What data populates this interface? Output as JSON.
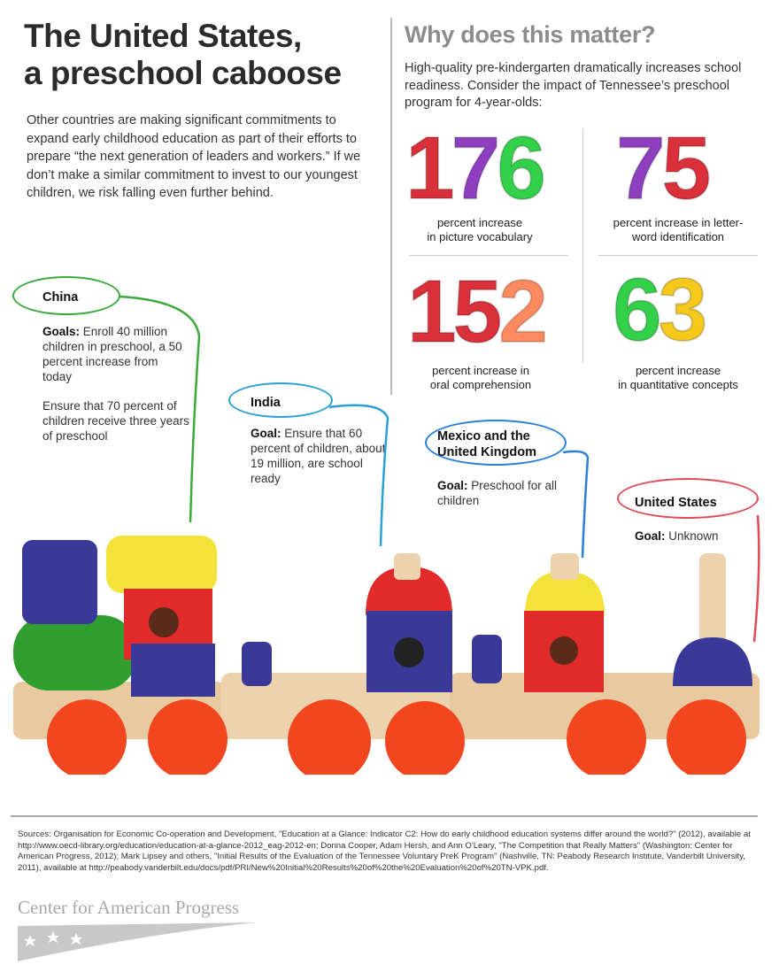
{
  "left": {
    "title_line1": "The United States,",
    "title_line2": "a preschool caboose",
    "intro": "Other countries are making significant commitments to expand early childhood education as part of their efforts to prepare “the next generation of leaders and workers.” If we don’t make a similar commitment to invest to our youngest children, we risk falling even further behind."
  },
  "right": {
    "heading": "Why does this matter?",
    "intro": "High-quality pre-kindergarten dramatically increases school readiness. Consider the impact of Tennessee’s preschool program for 4-year-olds:",
    "stats": [
      {
        "value": "176",
        "label_line1": "percent increase",
        "label_line2": "in picture vocabulary",
        "digit_colors": [
          "#d9303a",
          "#8e3fc0",
          "#33d04a"
        ]
      },
      {
        "value": "75",
        "label_line1": "percent increase in letter-",
        "label_line2": "word identification",
        "digit_colors": [
          "#8e3fc0",
          "#d9303a"
        ]
      },
      {
        "value": "152",
        "label_line1": "percent increase in",
        "label_line2": "oral comprehension",
        "digit_colors": [
          "#d9303a",
          "#d9303a",
          "#ff8a60"
        ]
      },
      {
        "value": "63",
        "label_line1": "percent increase",
        "label_line2": "in quantitative concepts",
        "digit_colors": [
          "#33d04a",
          "#f5c81c"
        ]
      }
    ]
  },
  "countries": {
    "china": {
      "name": "China",
      "goal_label": "Goals:",
      "goal1": " Enroll 40 million children in preschool, a 50 percent increase from today",
      "goal2": "Ensure that 70 percent of children receive three years of preschool",
      "color": "#3aaa3a"
    },
    "india": {
      "name": "India",
      "goal_label": "Goal:",
      "goal": " Ensure that 60 percent of children, about 19 million, are school ready",
      "color": "#2a9fd8"
    },
    "mexico_uk": {
      "name_line1": "Mexico and the",
      "name_line2": "United Kingdom",
      "goal_label": "Goal:",
      "goal": " Preschool for all children",
      "color": "#2a7fd8"
    },
    "us": {
      "name": "United States",
      "goal_label": "Goal:",
      "goal": " Unknown",
      "color": "#e04a55"
    }
  },
  "footer": {
    "sources": "Sources: Organisation for Economic Co-operation and Development, \"Education at a Glance: Indicator C2: How do early childhood education systems differ around the world?\" (2012), available at http://www.oecd-library.org/education/education-at-a-glance-2012_eag-2012-en; Donna Cooper, Adam Hersh, and Ann O'Leary, \"The Competition that Really Matters\" (Washington: Center for American Progress, 2012); Mark Lipsey and others, \"Initial Results of the Evaluation of the Tennessee Voluntary PreK Program\" (Nashville, TN: Peabody Research Institute, Vanderbilt University, 2011), available at http://peabody.vanderbilt.edu/docs/pdf/PRI/New%20Initial%20Results%20of%20the%20Evaluation%20of%20TN-VPK.pdf.",
    "logo_text": "Center for American Progress"
  }
}
